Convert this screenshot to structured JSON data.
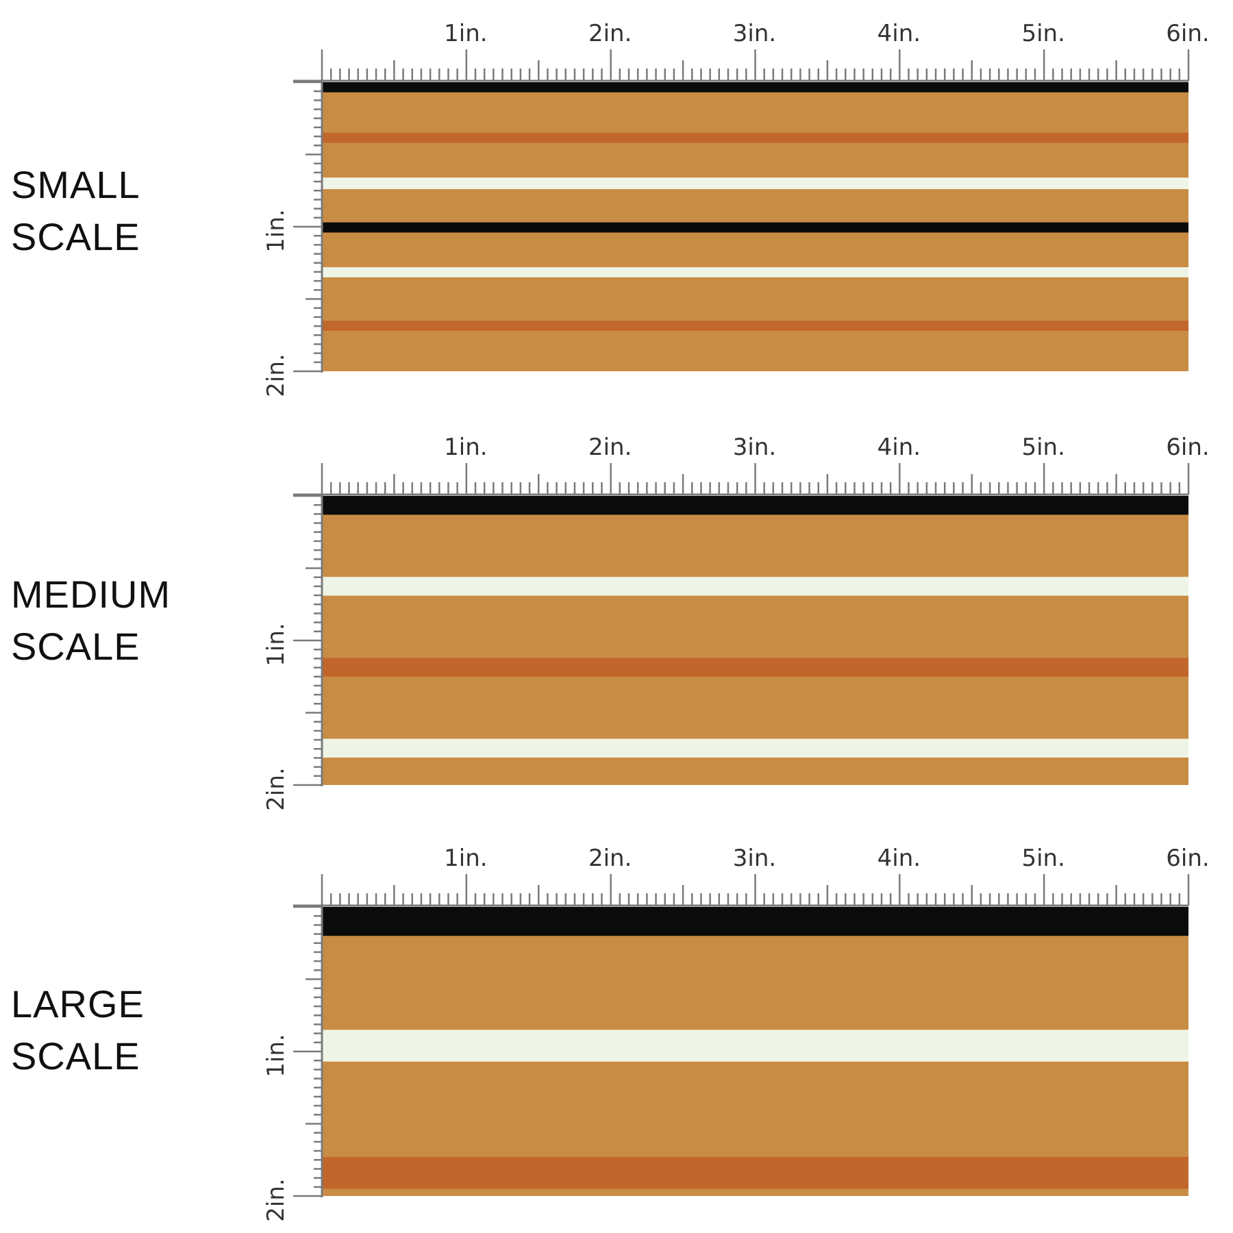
{
  "colors": {
    "fabric": "#C98C45",
    "black": "#0B0B0B",
    "rust": "#C1662C",
    "cream": "#EEF5E6",
    "ruler": "#7A7A7A"
  },
  "ruler": {
    "top_labels": [
      "1in.",
      "2in.",
      "3in.",
      "4in.",
      "5in.",
      "6in."
    ],
    "side_labels": [
      "1in.",
      "2in."
    ]
  },
  "sections": [
    {
      "title_line1": "SMALL",
      "title_line2": "SCALE",
      "stripes": [
        {
          "color": "black",
          "start_in": 0.0,
          "end_in": 0.07
        },
        {
          "color": "rust",
          "start_in": 0.35,
          "end_in": 0.42
        },
        {
          "color": "cream",
          "start_in": 0.66,
          "end_in": 0.74
        },
        {
          "color": "black",
          "start_in": 0.97,
          "end_in": 1.04
        },
        {
          "color": "cream",
          "start_in": 1.28,
          "end_in": 1.35
        },
        {
          "color": "rust",
          "start_in": 1.65,
          "end_in": 1.72
        }
      ]
    },
    {
      "title_line1": "MEDIUM",
      "title_line2": "SCALE",
      "stripes": [
        {
          "color": "black",
          "start_in": 0.0,
          "end_in": 0.13
        },
        {
          "color": "cream",
          "start_in": 0.56,
          "end_in": 0.69
        },
        {
          "color": "rust",
          "start_in": 1.12,
          "end_in": 1.25
        },
        {
          "color": "cream",
          "start_in": 1.68,
          "end_in": 1.81
        }
      ]
    },
    {
      "title_line1": "LARGE",
      "title_line2": "SCALE",
      "stripes": [
        {
          "color": "black",
          "start_in": 0.0,
          "end_in": 0.2
        },
        {
          "color": "cream",
          "start_in": 0.85,
          "end_in": 1.07
        },
        {
          "color": "rust",
          "start_in": 1.73,
          "end_in": 1.95
        }
      ]
    }
  ]
}
